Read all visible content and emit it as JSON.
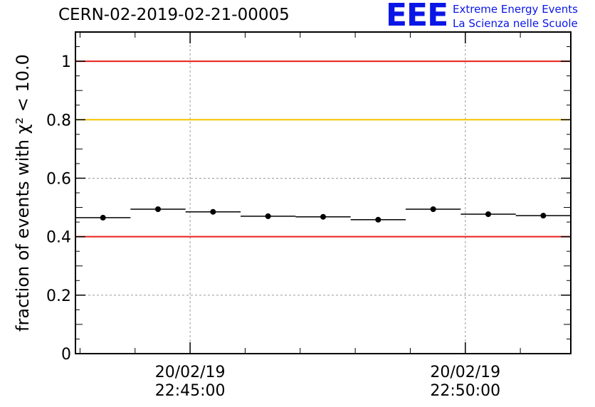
{
  "title": "CERN-02-2019-02-21-00005",
  "logo": {
    "mark": "EEE",
    "line1": "Extreme Energy Events",
    "line2": "La Scienza nelle Scuole"
  },
  "colors": {
    "threshold_red": "#e8201c",
    "threshold_yellow": "#f5c400",
    "brand_blue": "#0a16e6"
  },
  "chart_data": {
    "type": "scatter",
    "ylabel": "fraction of events with χ² < 10.0",
    "ylim": [
      0,
      1.1
    ],
    "y_ticks": [
      "0",
      "0.2",
      "0.4",
      "0.6",
      "0.8",
      "1"
    ],
    "y_tick_values": [
      0,
      0.2,
      0.4,
      0.6,
      0.8,
      1.0
    ],
    "xlim": [
      "20/02/19 22:42:55",
      "20/02/19 22:51:55"
    ],
    "x_tick_labels": [
      {
        "time": "20/02/19 22:45:00",
        "date": "20/02/19",
        "clock": "22:45:00"
      },
      {
        "time": "20/02/19 22:50:00",
        "date": "20/02/19",
        "clock": "22:50:00"
      }
    ],
    "reference_lines": [
      {
        "y": 1.0,
        "color": "#e8201c"
      },
      {
        "y": 0.8,
        "color": "#f5c400"
      },
      {
        "y": 0.4,
        "color": "#e8201c"
      }
    ],
    "grid": true,
    "points": [
      {
        "x_start": "20/02/19 22:42:55",
        "x_end": "20/02/19 22:43:55",
        "y": 0.465
      },
      {
        "x_start": "20/02/19 22:43:55",
        "x_end": "20/02/19 22:44:55",
        "y": 0.494
      },
      {
        "x_start": "20/02/19 22:44:55",
        "x_end": "20/02/19 22:45:55",
        "y": 0.485
      },
      {
        "x_start": "20/02/19 22:45:55",
        "x_end": "20/02/19 22:46:55",
        "y": 0.47
      },
      {
        "x_start": "20/02/19 22:46:55",
        "x_end": "20/02/19 22:47:55",
        "y": 0.468
      },
      {
        "x_start": "20/02/19 22:47:55",
        "x_end": "20/02/19 22:48:55",
        "y": 0.458
      },
      {
        "x_start": "20/02/19 22:48:55",
        "x_end": "20/02/19 22:49:55",
        "y": 0.494
      },
      {
        "x_start": "20/02/19 22:49:55",
        "x_end": "20/02/19 22:50:55",
        "y": 0.477
      },
      {
        "x_start": "20/02/19 22:50:55",
        "x_end": "20/02/19 22:51:55",
        "y": 0.472
      }
    ]
  }
}
